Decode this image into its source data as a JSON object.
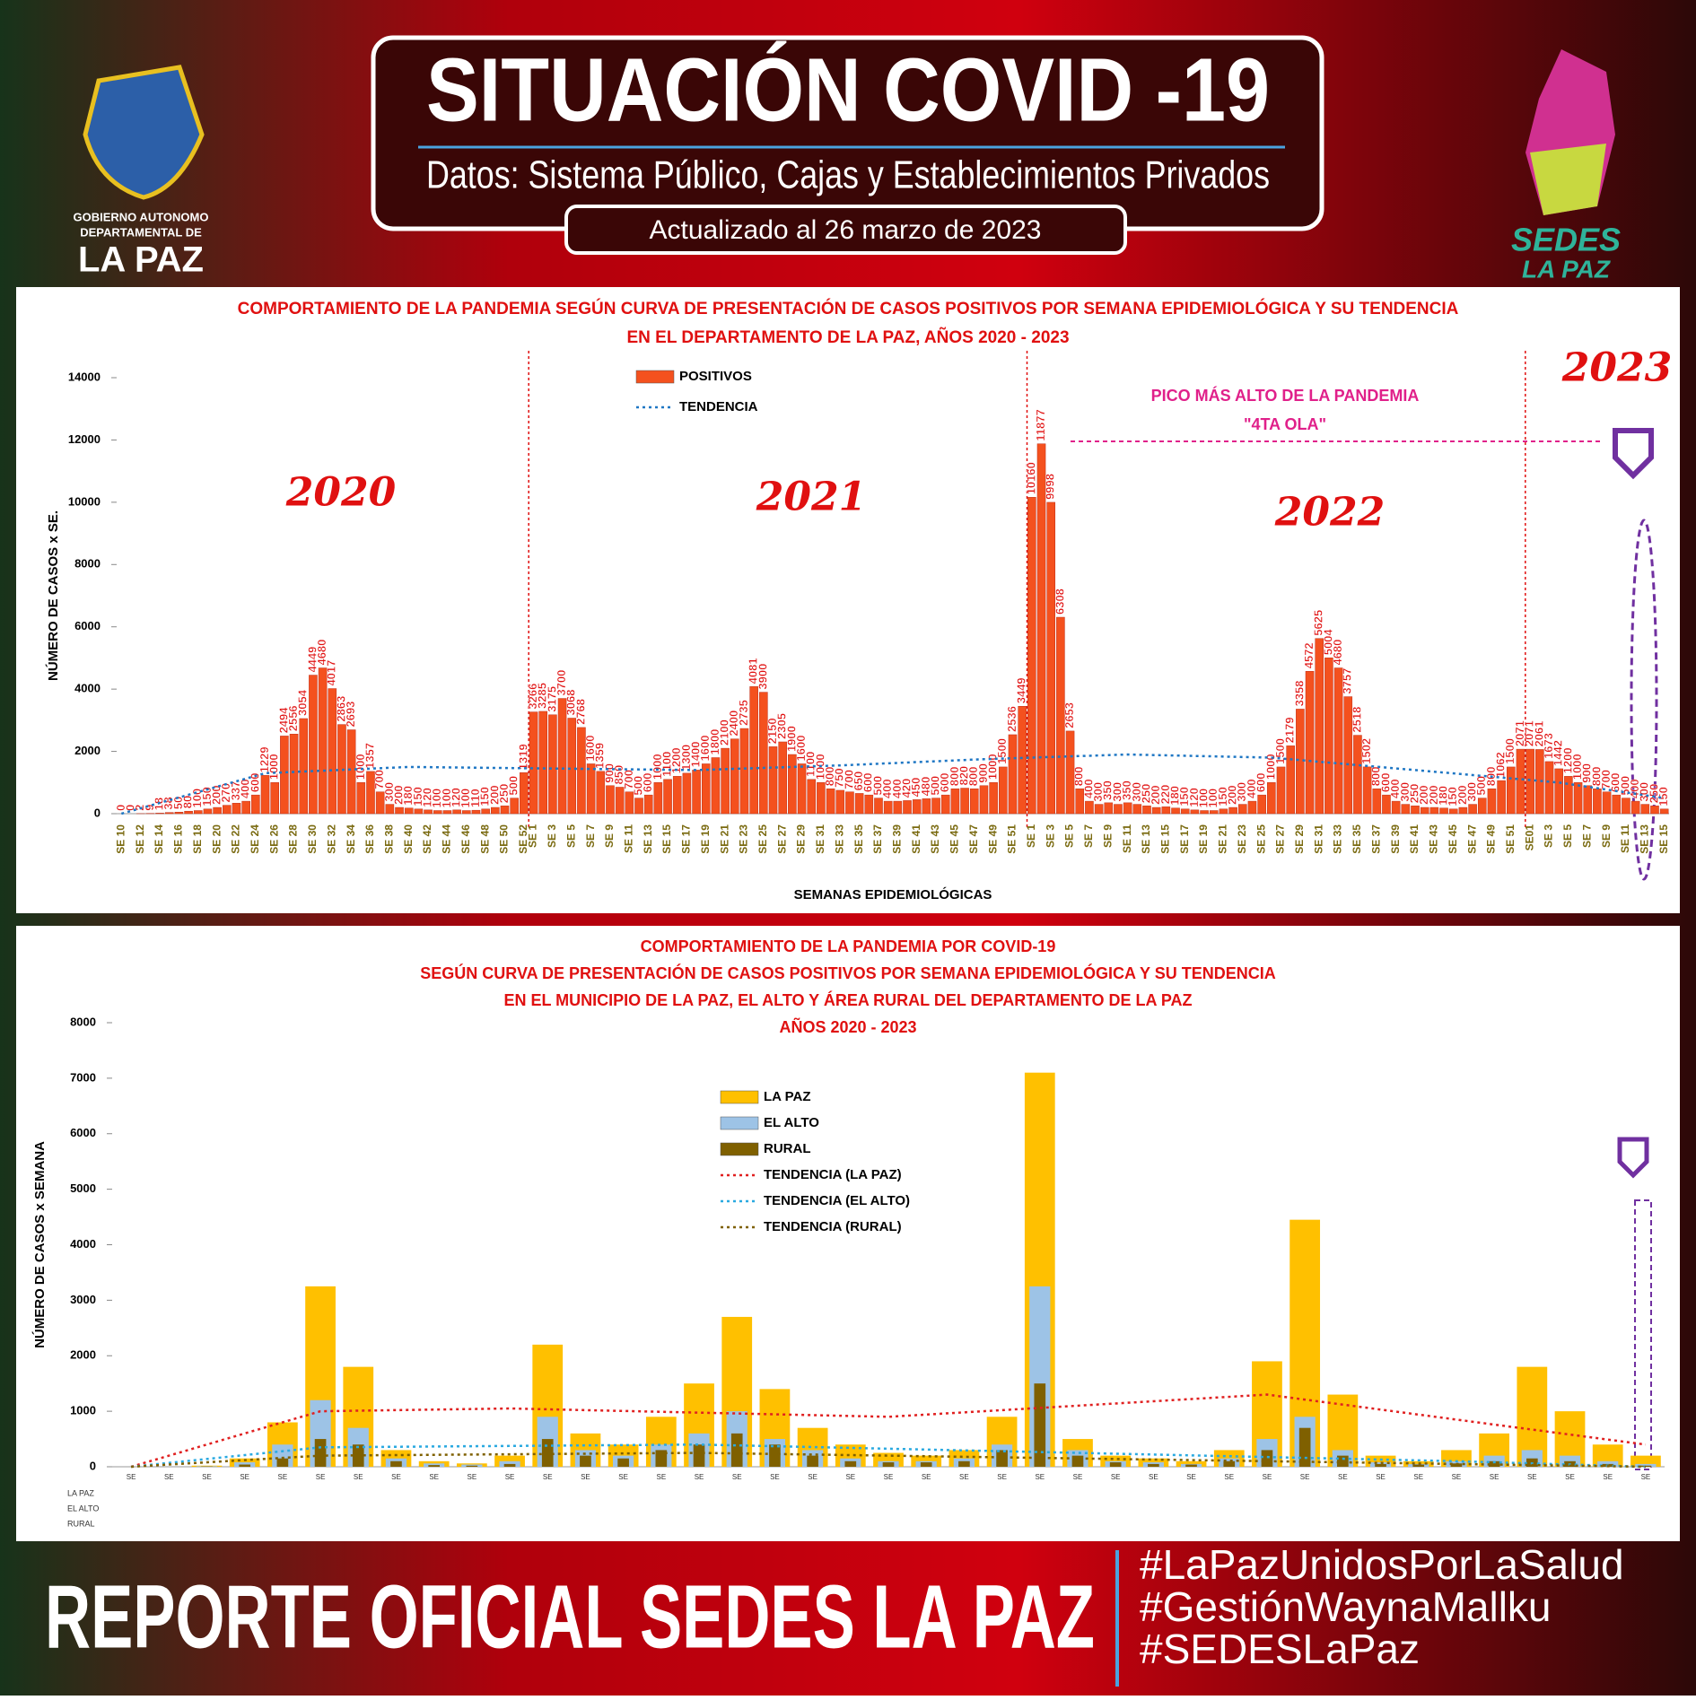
{
  "header": {
    "title": "SITUACIÓN COVID -19",
    "subtitle": "Datos: Sistema Público, Cajas y Establecimientos Privados",
    "updated": "Actualizado  al  26  marzo  de  2023",
    "logo_left": [
      "GOBIERNO AUTONOMO",
      "DEPARTAMENTAL DE",
      "LA PAZ"
    ],
    "logo_right": [
      "SEDES",
      "LA PAZ"
    ]
  },
  "chart_data": [
    {
      "type": "bar",
      "title": [
        "COMPORTAMIENTO DE LA PANDEMIA SEGÚN CURVA DE PRESENTACIÓN DE CASOS POSITIVOS POR SEMANA EPIDEMIOLÓGICA Y SU TENDENCIA",
        "EN EL DEPARTAMENTO DE LA PAZ, AÑOS 2020 - 2023"
      ],
      "y_label": "NÚMERO DE CASOS x SE.",
      "x_label": "SEMANAS EPIDEMIOLÓGICAS",
      "ylim": [
        0,
        14000
      ],
      "yticks": [
        0,
        2000,
        4000,
        6000,
        8000,
        10000,
        12000,
        14000
      ],
      "data_labels": true,
      "annotations": [
        "2020",
        "2021",
        "2022",
        "2023",
        "PICO MÁS ALTO DE LA PANDEMIA",
        "\"4TA OLA\""
      ],
      "categories": [
        "SE 10",
        null,
        "SE 12",
        null,
        "SE 14",
        null,
        "SE 16",
        null,
        "SE 18",
        null,
        "SE 20",
        null,
        "SE 22",
        null,
        "SE 24",
        null,
        "SE 26",
        null,
        "SE 28",
        null,
        "SE 30",
        null,
        "SE 32",
        null,
        "SE 34",
        null,
        "SE 36",
        null,
        "SE 38",
        null,
        "SE 40",
        null,
        "SE 42",
        null,
        "SE 44",
        null,
        "SE 46",
        null,
        "SE 48",
        null,
        "SE 50",
        null,
        "SE 52",
        "SE 1",
        null,
        "SE 3",
        null,
        "SE 5",
        null,
        "SE 7",
        null,
        "SE 9",
        null,
        "SE 11",
        null,
        "SE 13",
        null,
        "SE 15",
        null,
        "SE 17",
        null,
        "SE 19",
        null,
        "SE 21",
        null,
        "SE 23",
        null,
        "SE 25",
        null,
        "SE 27",
        null,
        "SE 29",
        null,
        "SE 31",
        null,
        "SE 33",
        null,
        "SE 35",
        null,
        "SE 37",
        null,
        "SE 39",
        null,
        "SE 41",
        null,
        "SE 43",
        null,
        "SE 45",
        null,
        "SE 47",
        null,
        "SE 49",
        null,
        "SE 51",
        null,
        "SE 1",
        null,
        "SE 3",
        null,
        "SE 5",
        null,
        "SE 7",
        null,
        "SE 9",
        null,
        "SE 11",
        null,
        "SE 13",
        null,
        "SE 15",
        null,
        "SE 17",
        null,
        "SE 19",
        null,
        "SE 21",
        null,
        "SE 23",
        null,
        "SE 25",
        null,
        "SE 27",
        null,
        "SE 29",
        null,
        "SE 31",
        null,
        "SE 33",
        null,
        "SE 35",
        null,
        "SE 37",
        null,
        "SE 39",
        null,
        "SE 41",
        null,
        "SE 43",
        null,
        "SE 45",
        null,
        "SE 47",
        null,
        "SE 49",
        null,
        "SE 51",
        null,
        "SE01",
        null,
        "SE 3",
        null,
        "SE 5",
        null,
        "SE 7",
        null,
        "SE 9",
        null,
        "SE 11",
        null,
        "SE 13",
        null,
        "SE 15"
      ],
      "series": [
        {
          "name": "POSITIVOS",
          "color": "#f4511e",
          "values": [
            0,
            0,
            2,
            9,
            18,
            38,
            50,
            80,
            100,
            150,
            200,
            270,
            337,
            400,
            600,
            1229,
            1000,
            2494,
            2556,
            3054,
            4449,
            4680,
            4017,
            2863,
            2693,
            1000,
            1357,
            700,
            300,
            200,
            180,
            150,
            120,
            100,
            100,
            120,
            100,
            110,
            150,
            200,
            250,
            500,
            1319,
            3266,
            3285,
            3175,
            3700,
            3068,
            2768,
            1600,
            1359,
            900,
            850,
            700,
            500,
            600,
            1000,
            1100,
            1200,
            1300,
            1400,
            1600,
            1800,
            2100,
            2400,
            2735,
            4081,
            3900,
            2150,
            2305,
            1900,
            1600,
            1100,
            1000,
            800,
            750,
            700,
            650,
            600,
            500,
            400,
            400,
            420,
            450,
            480,
            500,
            600,
            800,
            820,
            800,
            900,
            1000,
            1500,
            2536,
            3449,
            10160,
            11877,
            9998,
            6308,
            2653,
            800,
            400,
            300,
            350,
            300,
            350,
            300,
            250,
            200,
            220,
            180,
            150,
            120,
            100,
            100,
            150,
            200,
            300,
            400,
            600,
            1000,
            1500,
            2179,
            3358,
            4572,
            5625,
            5004,
            4680,
            3757,
            2518,
            1502,
            800,
            600,
            400,
            300,
            250,
            200,
            200,
            180,
            150,
            200,
            300,
            500,
            800,
            1062,
            1500,
            2071,
            2071,
            2061,
            1673,
            1442,
            1200,
            1000,
            900,
            800,
            700,
            600,
            500,
            400,
            300,
            250,
            150
          ]
        },
        {
          "name": "TENDENCIA",
          "type": "line",
          "color": "#1f77c4",
          "x": [
            0,
            15,
            30,
            45,
            60,
            75,
            90,
            105,
            120,
            135,
            150,
            161
          ],
          "values": [
            0,
            1300,
            1500,
            1450,
            1400,
            1550,
            1750,
            1900,
            1800,
            1400,
            1000,
            500
          ]
        }
      ]
    },
    {
      "type": "bar",
      "title": [
        "COMPORTAMIENTO DE LA PANDEMIA POR COVID-19",
        "SEGÚN CURVA DE PRESENTACIÓN DE CASOS POSITIVOS POR SEMANA EPIDEMIOLÓGICA Y SU TENDENCIA",
        "EN EL  MUNICIPIO DE LA PAZ, EL ALTO Y ÁREA RURAL DEL DEPARTAMENTO DE LA PAZ",
        "AÑOS 2020 - 2023"
      ],
      "y_label": "NÚMERO DE CASOS x SEMANA",
      "ylim": [
        0,
        8000
      ],
      "yticks": [
        0,
        1000,
        2000,
        3000,
        4000,
        5000,
        6000,
        7000,
        8000
      ],
      "categories": [
        "SE",
        "SE",
        "SE",
        "SE",
        "SE",
        "SE",
        "SE",
        "SE",
        "SE",
        "SE",
        "SE",
        "SE",
        "SE",
        "SE",
        "SE",
        "SE",
        "SE",
        "SE",
        "SE",
        "SE",
        "SE",
        "SE",
        "SE",
        "SE",
        "SE",
        "SE",
        "SE",
        "SE",
        "SE",
        "SE",
        "SE",
        "SE",
        "SE",
        "SE",
        "SE",
        "SE",
        "SE",
        "SE",
        "SE",
        "SE",
        "SE"
      ],
      "series": [
        {
          "name": "LA PAZ",
          "color": "#ffc000",
          "values": [
            0,
            0,
            20,
            150,
            800,
            3250,
            1800,
            300,
            100,
            60,
            200,
            2200,
            600,
            400,
            900,
            1500,
            2700,
            1400,
            700,
            400,
            250,
            200,
            300,
            900,
            7100,
            500,
            200,
            150,
            100,
            300,
            1900,
            4450,
            1300,
            200,
            100,
            300,
            600,
            1800,
            1000,
            400,
            200
          ]
        },
        {
          "name": "EL ALTO",
          "color": "#9dc3e6",
          "values": [
            0,
            0,
            10,
            80,
            400,
            1200,
            700,
            150,
            60,
            40,
            100,
            900,
            300,
            200,
            400,
            600,
            1000,
            500,
            300,
            150,
            100,
            100,
            150,
            400,
            3250,
            300,
            100,
            80,
            50,
            150,
            500,
            900,
            300,
            80,
            50,
            100,
            200,
            300,
            200,
            100,
            50
          ]
        },
        {
          "name": "RURAL",
          "color": "#7f6000",
          "values": [
            0,
            0,
            5,
            40,
            150,
            500,
            400,
            100,
            30,
            20,
            50,
            500,
            200,
            150,
            300,
            400,
            600,
            400,
            200,
            100,
            80,
            80,
            100,
            300,
            1500,
            200,
            80,
            50,
            40,
            100,
            300,
            700,
            200,
            50,
            40,
            60,
            100,
            150,
            100,
            50,
            20
          ]
        },
        {
          "name": "TENDENCIA (LA PAZ)",
          "type": "line",
          "color": "#e02020",
          "x": [
            0,
            5,
            10,
            20,
            30,
            40
          ],
          "values": [
            0,
            1000,
            1050,
            900,
            1300,
            400
          ]
        },
        {
          "name": "TENDENCIA (EL ALTO)",
          "type": "line",
          "color": "#2aa9e0",
          "x": [
            0,
            5,
            15,
            25,
            35,
            40
          ],
          "values": [
            0,
            350,
            400,
            250,
            100,
            0
          ]
        },
        {
          "name": "TENDENCIA (RURAL)",
          "type": "line",
          "color": "#7f6000",
          "x": [
            0,
            5,
            15,
            25,
            35,
            40
          ],
          "values": [
            0,
            200,
            250,
            150,
            50,
            0
          ]
        }
      ]
    }
  ],
  "footer": {
    "title": "REPORTE OFICIAL SEDES LA PAZ",
    "hashtags": [
      "#LaPazUnidosPorLaSalud",
      "#GestiónWaynaMallku",
      "#SEDESLaPaz"
    ]
  }
}
